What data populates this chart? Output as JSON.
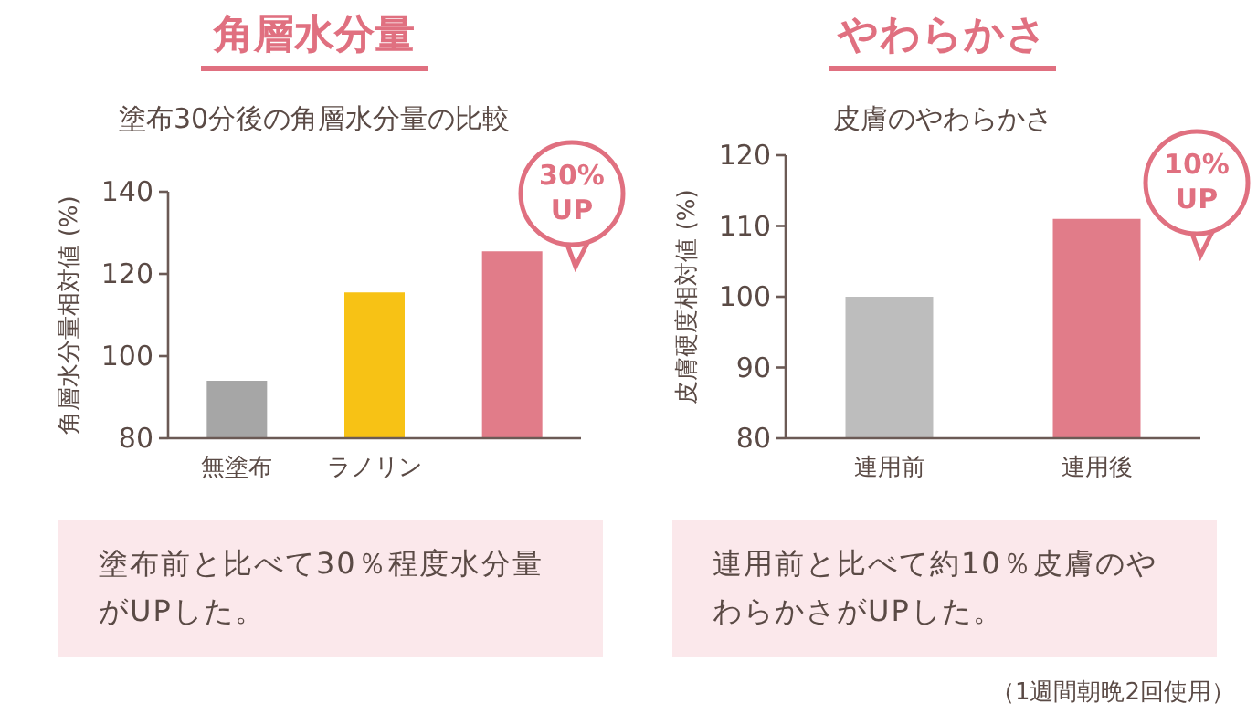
{
  "chart_data": [
    {
      "type": "bar",
      "title": "角層水分量",
      "subtitle": "塗布30分後の角層水分量の比較",
      "ylabel": "角層水分量相対値 (%)",
      "categories": [
        "無塗布",
        "ラノリン",
        null
      ],
      "values": [
        94,
        115.5,
        125.5
      ],
      "colors": [
        "#a6a6a6",
        "#f7c215",
        "#e17c89"
      ],
      "ylim": [
        80,
        140
      ],
      "yticks": [
        80,
        100,
        120,
        140
      ],
      "grid": false,
      "annotations": [
        "30% UP",
        "塗布前と比べて30％程度水分量がUPした。"
      ]
    },
    {
      "type": "bar",
      "title": "やわらかさ",
      "subtitle": "皮膚のやわらかさ",
      "ylabel": "皮膚硬度相対値 (%)",
      "categories": [
        "連用前",
        "連用後"
      ],
      "values": [
        100,
        111
      ],
      "colors": [
        "#bdbdbd",
        "#e17c89"
      ],
      "ylim": [
        80,
        120
      ],
      "yticks": [
        80,
        90,
        100,
        110,
        120
      ],
      "grid": false,
      "annotations": [
        "10% UP",
        "連用前と比べて約10％皮膚のやわらかさがUPした。",
        "（1週間朝晩2回使用）"
      ]
    }
  ]
}
